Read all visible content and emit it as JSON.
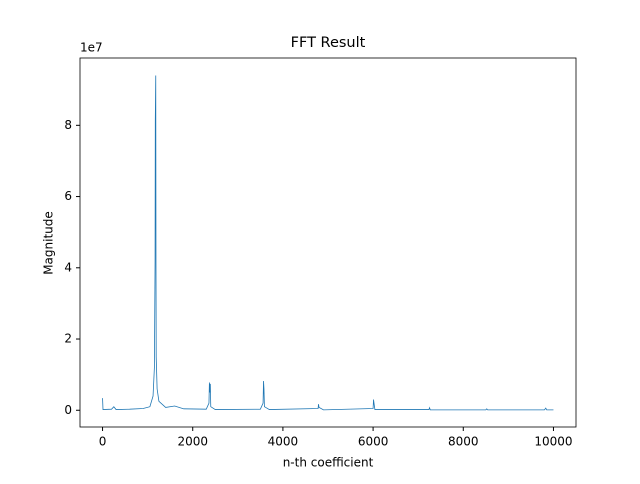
{
  "chart_data": {
    "type": "line",
    "title": "FFT Result",
    "x_label": "n-th coefficient",
    "y_label": "Magnitude",
    "y_offset_label": "1e7",
    "xlim": [
      -500,
      10500
    ],
    "ylim": [
      -0.47,
      9.89
    ],
    "xticks": [
      0,
      2000,
      4000,
      6000,
      8000,
      10000
    ],
    "yticks": [
      0,
      2,
      4,
      6,
      8
    ],
    "series": [
      {
        "color": "#1f77b4",
        "x": [
          0,
          10,
          200,
          250,
          300,
          600,
          900,
          1050,
          1120,
          1150,
          1165,
          1170,
          1180,
          1185,
          1190,
          1210,
          1250,
          1400,
          1600,
          1800,
          2300,
          2360,
          2370,
          2380,
          2390,
          2400,
          2500,
          3500,
          3560,
          3570,
          3580,
          3590,
          3700,
          4780,
          4790,
          4800,
          4900,
          6000,
          6010,
          6020,
          6040,
          7240,
          7250,
          7270,
          8500,
          8520,
          8540,
          9800,
          9830,
          9850,
          10000
        ],
        "values": [
          0.34,
          0.02,
          0.03,
          0.1,
          0.02,
          0.03,
          0.05,
          0.1,
          0.4,
          1.2,
          4.2,
          8.15,
          9.4,
          4.1,
          1.5,
          0.6,
          0.25,
          0.08,
          0.12,
          0.04,
          0.03,
          0.2,
          0.78,
          0.5,
          0.74,
          0.1,
          0.02,
          0.03,
          0.2,
          0.82,
          0.6,
          0.1,
          0.02,
          0.05,
          0.17,
          0.08,
          0.01,
          0.05,
          0.3,
          0.2,
          0.02,
          0.02,
          0.07,
          0.01,
          0.01,
          0.04,
          0.01,
          0.01,
          0.06,
          0.01,
          0.01
        ]
      }
    ]
  }
}
